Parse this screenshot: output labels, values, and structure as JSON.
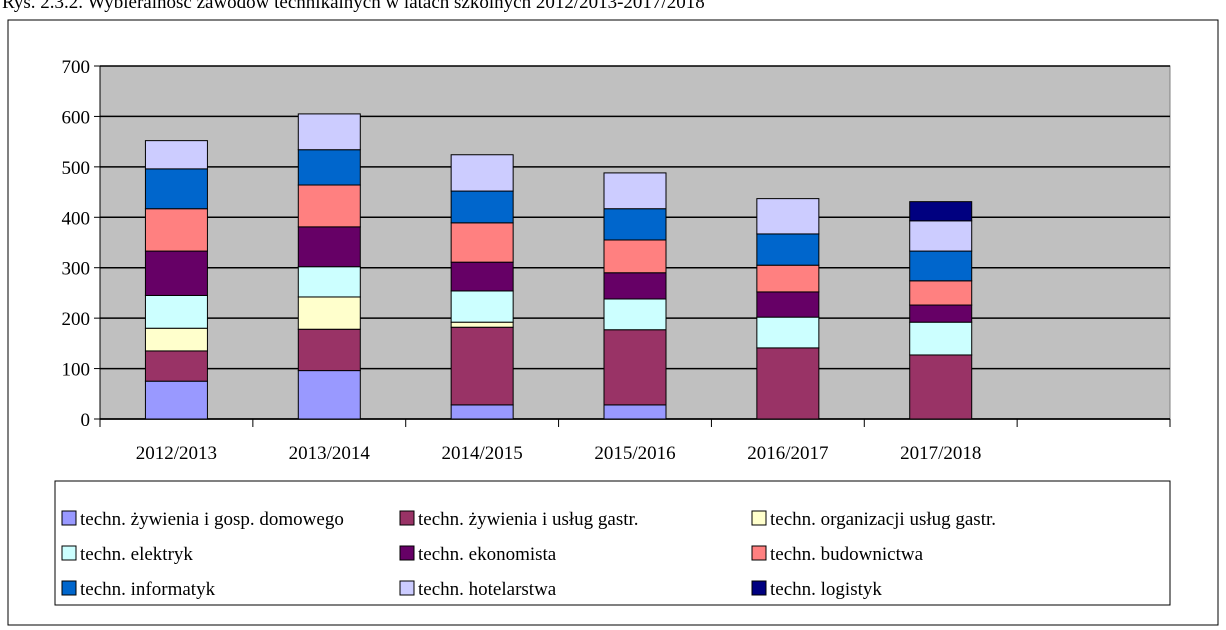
{
  "chart_data": {
    "type": "stacked_bar",
    "title": "Rys. 2.3.2. Wybieralność zawodów technikalnych w latach szkolnych 2012/2013-2017/2018",
    "categories": [
      "2012/2013",
      "2013/2014",
      "2014/2015",
      "2015/2016",
      "2016/2017",
      "2017/2018",
      null
    ],
    "series": [
      {
        "name": "techn. żywienia i gosp. domowego",
        "color": "#9999ff",
        "values": [
          75,
          96,
          28,
          28,
          0,
          0,
          null
        ]
      },
      {
        "name": "techn. żywienia i usług gastr.",
        "color": "#993366",
        "values": [
          60,
          82,
          154,
          149,
          141,
          127,
          null
        ]
      },
      {
        "name": "techn. organizacji usług gastr.",
        "color": "#ffffcc",
        "values": [
          45,
          64,
          10,
          0,
          0,
          0,
          null
        ]
      },
      {
        "name": "techn. elektryk",
        "color": "#ccffff",
        "values": [
          65,
          60,
          62,
          61,
          61,
          65,
          null
        ]
      },
      {
        "name": "techn. ekonomista",
        "color": "#660066",
        "values": [
          88,
          79,
          57,
          52,
          50,
          34,
          null
        ]
      },
      {
        "name": "techn. budownictwa",
        "color": "#ff8080",
        "values": [
          84,
          83,
          78,
          65,
          53,
          48,
          null
        ]
      },
      {
        "name": "techn. informatyk",
        "color": "#0066cc",
        "values": [
          79,
          70,
          63,
          62,
          62,
          59,
          null
        ]
      },
      {
        "name": "techn. hotelarstwa",
        "color": "#ccccff",
        "values": [
          56,
          71,
          72,
          71,
          70,
          60,
          null
        ]
      },
      {
        "name": "techn. logistyk",
        "color": "#000080",
        "values": [
          0,
          0,
          0,
          0,
          0,
          38,
          null
        ]
      }
    ],
    "ylim": [
      0,
      700
    ],
    "yticks": [
      0,
      100,
      200,
      300,
      400,
      500,
      600,
      700
    ],
    "grid": true,
    "legend": "bottom"
  }
}
